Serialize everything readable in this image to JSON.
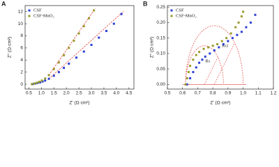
{
  "chart_data": [
    {
      "type": "scatter",
      "panel_label": "A",
      "x_label": "Z' (Ω·cm²)",
      "y_label": "Z'' (Ω·cm²)",
      "xlim": [
        0.35,
        4.7
      ],
      "ylim": [
        -0.8,
        13
      ],
      "xticks": [
        0.5,
        {
          "value": 1,
          "label": "1.0"
        },
        1.5,
        {
          "value": 2,
          "label": "2.0"
        },
        2.5,
        {
          "value": 3,
          "label": "3.0"
        },
        3.5,
        {
          "value": 4,
          "label": "4.0"
        },
        4.5
      ],
      "yticks": [
        0,
        2,
        4,
        6,
        8,
        10,
        12
      ],
      "series": [
        {
          "name": "CSF",
          "color": "#2b3fd6",
          "x": [
            0.65,
            0.75,
            0.85,
            0.95,
            1.05,
            1.15,
            1.3,
            1.5,
            1.7,
            1.9,
            2.1,
            2.4,
            2.7,
            3.0,
            3.3,
            3.6,
            3.9,
            4.2
          ],
          "y": [
            0.02,
            0.1,
            0.2,
            0.3,
            0.45,
            0.6,
            0.9,
            1.4,
            2.0,
            2.7,
            3.4,
            4.4,
            5.4,
            6.5,
            7.7,
            8.8,
            10.0,
            11.6
          ]
        },
        {
          "name": "CSF-MnO₂",
          "color": "#9a9a2a",
          "x": [
            0.62,
            0.72,
            0.82,
            0.92,
            1.02,
            1.15,
            1.3,
            1.5,
            1.7,
            1.9,
            2.1,
            2.3,
            2.5,
            2.7,
            2.9,
            3.1
          ],
          "y": [
            0.02,
            0.12,
            0.25,
            0.4,
            0.6,
            0.95,
            1.5,
            2.5,
            3.6,
            4.8,
            6.0,
            7.2,
            8.4,
            9.6,
            10.9,
            12.2
          ]
        }
      ],
      "fit_lines": [
        {
          "color": "#e0403a",
          "x": [
            1.3,
            4.3
          ],
          "y": [
            0.9,
            12.1
          ]
        },
        {
          "color": "#e0403a",
          "x": [
            1.3,
            3.15
          ],
          "y": [
            1.5,
            12.5
          ]
        }
      ]
    },
    {
      "type": "scatter",
      "panel_label": "B",
      "x_label": "Z' (Ω·cm²)",
      "y_label": "Z'' (Ω·cm²)",
      "xlim": [
        0.5,
        1.2
      ],
      "ylim": [
        -0.015,
        0.255
      ],
      "xticks": [
        0.5,
        0.6,
        0.7,
        0.8,
        0.9,
        {
          "value": 1,
          "label": "1.0"
        },
        1.1,
        1.2
      ],
      "yticks": [
        {
          "value": 0,
          "label": "0.00"
        },
        {
          "value": 0.05,
          "label": "0.05"
        },
        {
          "value": 0.1,
          "label": "0.10"
        },
        {
          "value": 0.15,
          "label": "0.15"
        },
        {
          "value": 0.2,
          "label": "0.20"
        },
        {
          "value": 0.25,
          "label": "0.25"
        }
      ],
      "series": [
        {
          "name": "CSF",
          "color": "#2b3fd6",
          "x": [
            0.63,
            0.65,
            0.67,
            0.69,
            0.71,
            0.73,
            0.75,
            0.78,
            0.81,
            0.84,
            0.87,
            0.9,
            0.93,
            0.96,
            0.99,
            1.02,
            1.05,
            1.08
          ],
          "y": [
            0.0,
            0.02,
            0.04,
            0.055,
            0.07,
            0.08,
            0.09,
            0.1,
            0.11,
            0.12,
            0.13,
            0.14,
            0.15,
            0.16,
            0.17,
            0.185,
            0.2,
            0.225
          ]
        },
        {
          "name": "CSF-MnO₂",
          "color": "#9a9a2a",
          "x": [
            0.62,
            0.63,
            0.64,
            0.65,
            0.67,
            0.69,
            0.71,
            0.74,
            0.77,
            0.8,
            0.83,
            0.86,
            0.89,
            0.92,
            0.95,
            0.97,
            0.99,
            1.0
          ],
          "y": [
            0.0,
            0.02,
            0.04,
            0.06,
            0.08,
            0.095,
            0.105,
            0.115,
            0.12,
            0.125,
            0.13,
            0.14,
            0.15,
            0.165,
            0.185,
            0.2,
            0.22,
            0.235
          ]
        }
      ],
      "fit_arcs": [
        {
          "color": "#e0403a",
          "center": 0.81,
          "radius": 0.19
        },
        {
          "color": "#e0403a",
          "center": 0.745,
          "radius": 0.125
        }
      ],
      "annotations": [
        "Rct",
        "Rs"
      ]
    }
  ]
}
